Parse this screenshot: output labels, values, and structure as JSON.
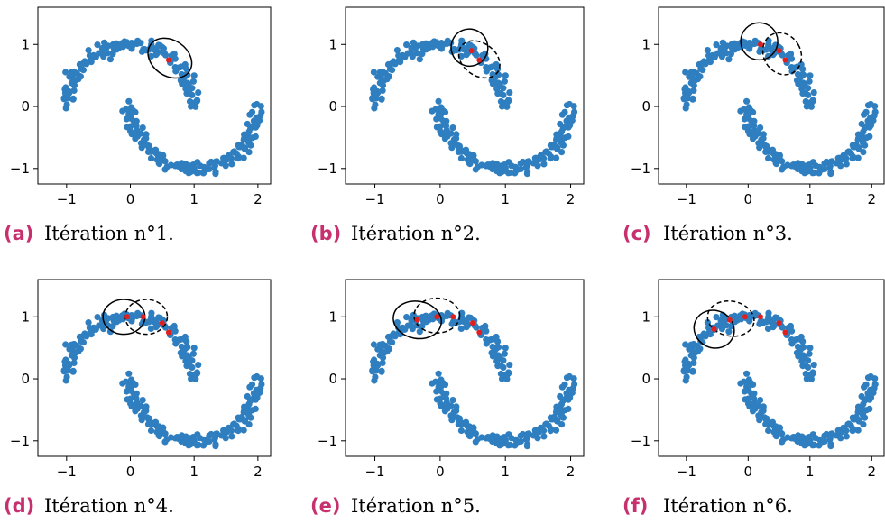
{
  "colors": {
    "points": "#2f7fc0",
    "centroid": "#e02020",
    "ellipse": "#000000",
    "caption_letter": "#c7306e"
  },
  "captions": [
    {
      "letter": "(a)",
      "text": "Itération n°1."
    },
    {
      "letter": "(b)",
      "text": "Itération n°2."
    },
    {
      "letter": "(c)",
      "text": "Itération n°3."
    },
    {
      "letter": "(d)",
      "text": "Itération n°4."
    },
    {
      "letter": "(e)",
      "text": "Itération n°5."
    },
    {
      "letter": "(f)",
      "text": "Itération n°6."
    }
  ],
  "chart_data": [
    {
      "type": "scatter",
      "xlim": [
        -1.45,
        2.2
      ],
      "ylim": [
        -1.25,
        1.6
      ],
      "xticks": [
        -1,
        0,
        1,
        2
      ],
      "xtick_labels": [
        "−1",
        "0",
        "1",
        "2"
      ],
      "yticks": [
        -1,
        0,
        1
      ],
      "ytick_labels": [
        "−1",
        "0",
        "1"
      ],
      "series": [
        {
          "kind": "two-moons scatter",
          "count": 300,
          "noise": 0.06
        },
        {
          "kind": "centroids",
          "points": [
            [
              0.6,
              0.75
            ]
          ]
        },
        {
          "kind": "ellipses",
          "items": [
            {
              "cx": 0.62,
              "cy": 0.78,
              "rx": 0.28,
              "ry": 0.38,
              "angle": 55,
              "dashed": false
            }
          ]
        }
      ]
    },
    {
      "type": "scatter",
      "xlim": [
        -1.45,
        2.2
      ],
      "ylim": [
        -1.25,
        1.6
      ],
      "xticks": [
        -1,
        0,
        1,
        2
      ],
      "xtick_labels": [
        "−1",
        "0",
        "1",
        "2"
      ],
      "yticks": [
        -1,
        0,
        1
      ],
      "ytick_labels": [
        "−1",
        "0",
        "1"
      ],
      "series": [
        {
          "kind": "two-moons scatter",
          "count": 300,
          "noise": 0.06
        },
        {
          "kind": "centroids",
          "points": [
            [
              0.6,
              0.75
            ],
            [
              0.48,
              0.9
            ]
          ]
        },
        {
          "kind": "ellipses",
          "items": [
            {
              "cx": 0.6,
              "cy": 0.76,
              "rx": 0.25,
              "ry": 0.36,
              "angle": 55,
              "dashed": true
            },
            {
              "cx": 0.45,
              "cy": 0.95,
              "rx": 0.28,
              "ry": 0.3,
              "angle": 20,
              "dashed": false
            }
          ]
        }
      ]
    },
    {
      "type": "scatter",
      "xlim": [
        -1.45,
        2.2
      ],
      "ylim": [
        -1.25,
        1.6
      ],
      "xticks": [
        -1,
        0,
        1,
        2
      ],
      "xtick_labels": [
        "−1",
        "0",
        "1",
        "2"
      ],
      "yticks": [
        -1,
        0,
        1
      ],
      "ytick_labels": [
        "−1",
        "0",
        "1"
      ],
      "series": [
        {
          "kind": "two-moons scatter",
          "count": 300,
          "noise": 0.06
        },
        {
          "kind": "centroids",
          "points": [
            [
              0.6,
              0.75
            ],
            [
              0.5,
              0.9
            ],
            [
              0.2,
              1.0
            ]
          ]
        },
        {
          "kind": "ellipses",
          "items": [
            {
              "cx": 0.55,
              "cy": 0.85,
              "rx": 0.3,
              "ry": 0.35,
              "angle": 30,
              "dashed": true
            },
            {
              "cx": 0.18,
              "cy": 1.05,
              "rx": 0.3,
              "ry": 0.3,
              "angle": 0,
              "dashed": false
            }
          ]
        }
      ]
    },
    {
      "type": "scatter",
      "xlim": [
        -1.45,
        2.2
      ],
      "ylim": [
        -1.25,
        1.6
      ],
      "xticks": [
        -1,
        0,
        1,
        2
      ],
      "xtick_labels": [
        "−1",
        "0",
        "1",
        "2"
      ],
      "yticks": [
        -1,
        0,
        1
      ],
      "ytick_labels": [
        "−1",
        "0",
        "1"
      ],
      "series": [
        {
          "kind": "two-moons scatter",
          "count": 300,
          "noise": 0.06
        },
        {
          "kind": "centroids",
          "points": [
            [
              0.6,
              0.75
            ],
            [
              0.5,
              0.9
            ],
            [
              0.2,
              1.0
            ],
            [
              -0.05,
              1.0
            ]
          ]
        },
        {
          "kind": "ellipses",
          "items": [
            {
              "cx": 0.25,
              "cy": 1.0,
              "rx": 0.33,
              "ry": 0.28,
              "angle": 0,
              "dashed": true
            },
            {
              "cx": -0.1,
              "cy": 1.0,
              "rx": 0.33,
              "ry": 0.28,
              "angle": 0,
              "dashed": false
            }
          ]
        }
      ]
    },
    {
      "type": "scatter",
      "xlim": [
        -1.45,
        2.2
      ],
      "ylim": [
        -1.25,
        1.6
      ],
      "xticks": [
        -1,
        0,
        1,
        2
      ],
      "xtick_labels": [
        "−1",
        "0",
        "1",
        "2"
      ],
      "yticks": [
        -1,
        0,
        1
      ],
      "ytick_labels": [
        "−1",
        "0",
        "1"
      ],
      "series": [
        {
          "kind": "two-moons scatter",
          "count": 300,
          "noise": 0.06
        },
        {
          "kind": "centroids",
          "points": [
            [
              0.6,
              0.75
            ],
            [
              0.5,
              0.9
            ],
            [
              0.2,
              1.0
            ],
            [
              -0.05,
              1.0
            ],
            [
              -0.35,
              0.95
            ]
          ]
        },
        {
          "kind": "ellipses",
          "items": [
            {
              "cx": -0.05,
              "cy": 1.02,
              "rx": 0.35,
              "ry": 0.28,
              "angle": 0,
              "dashed": true
            },
            {
              "cx": -0.35,
              "cy": 0.95,
              "rx": 0.37,
              "ry": 0.3,
              "angle": -10,
              "dashed": false
            }
          ]
        }
      ]
    },
    {
      "type": "scatter",
      "xlim": [
        -1.45,
        2.2
      ],
      "ylim": [
        -1.25,
        1.6
      ],
      "xticks": [
        -1,
        0,
        1,
        2
      ],
      "xtick_labels": [
        "−1",
        "0",
        "1",
        "2"
      ],
      "yticks": [
        -1,
        0,
        1
      ],
      "ytick_labels": [
        "−1",
        "0",
        "1"
      ],
      "series": [
        {
          "kind": "two-moons scatter",
          "count": 300,
          "noise": 0.06
        },
        {
          "kind": "centroids",
          "points": [
            [
              0.6,
              0.75
            ],
            [
              0.5,
              0.9
            ],
            [
              0.2,
              1.0
            ],
            [
              -0.05,
              1.0
            ],
            [
              -0.3,
              0.95
            ],
            [
              -0.55,
              0.8
            ]
          ]
        },
        {
          "kind": "ellipses",
          "items": [
            {
              "cx": -0.28,
              "cy": 0.97,
              "rx": 0.38,
              "ry": 0.28,
              "angle": -10,
              "dashed": true
            },
            {
              "cx": -0.55,
              "cy": 0.8,
              "rx": 0.33,
              "ry": 0.3,
              "angle": -25,
              "dashed": false
            }
          ]
        }
      ]
    }
  ]
}
